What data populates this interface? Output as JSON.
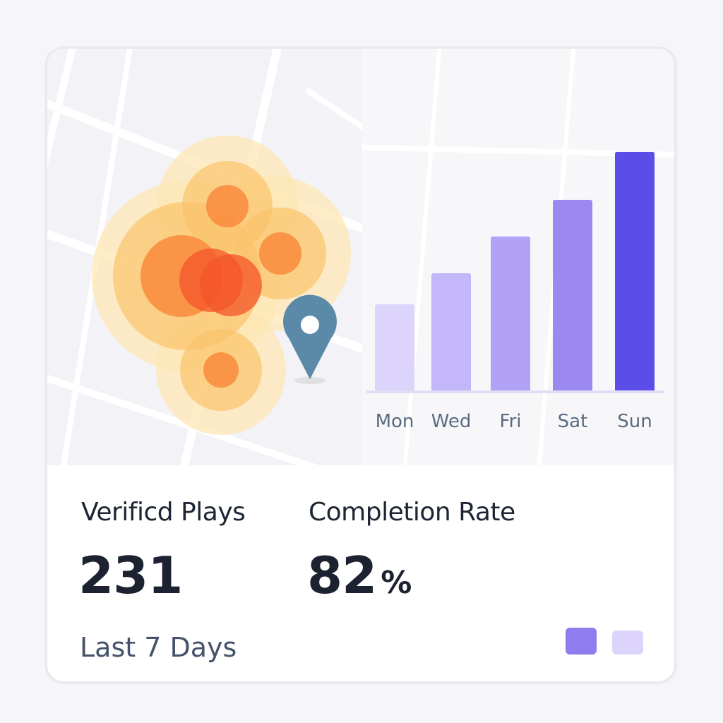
{
  "map": {
    "pin_color": "#5a8aa8",
    "heat_colors": [
      "#fde7b4",
      "#fbc36b",
      "#f98a3c",
      "#f4542a"
    ]
  },
  "chart_data": {
    "type": "bar",
    "categories": [
      "Mon",
      "Wed",
      "Fri",
      "Sat",
      "Sun"
    ],
    "values": [
      31,
      42,
      55,
      68,
      85
    ],
    "ylim": [
      0,
      100
    ],
    "colors": [
      "#dcd4fb",
      "#c3b6f9",
      "#b2a2f7",
      "#9b88f1",
      "#5a4de8"
    ],
    "title": "",
    "xlabel": "",
    "ylabel": ""
  },
  "stats": {
    "plays_label": "Verificd Plays",
    "plays_value": "231",
    "completion_label": "Completion Rate",
    "completion_value": "82",
    "completion_unit": "%"
  },
  "period_label": "Last 7 Days",
  "legend": {
    "colors": [
      "#8f7cef",
      "#dcd4fb"
    ]
  }
}
